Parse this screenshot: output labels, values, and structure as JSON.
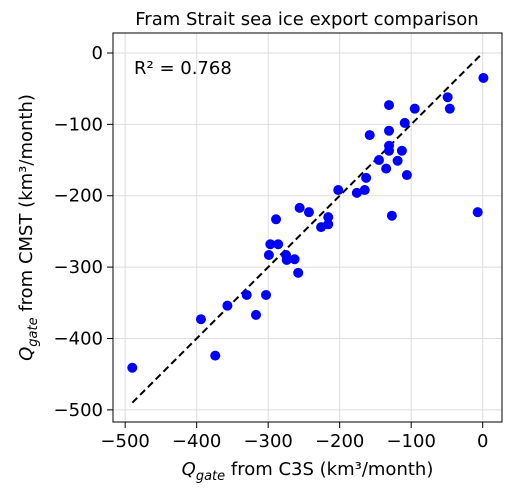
{
  "chart_data": {
    "type": "scatter",
    "title": "Fram Strait sea ice export comparison",
    "x_label": {
      "symbol": "Q",
      "subscript": "gate",
      "text": " from C3S (km³/month)"
    },
    "y_label": {
      "symbol": "Q",
      "subscript": "gate",
      "text": " from CMST (km³/month)"
    },
    "annotation": "R² = 0.768",
    "color": "#0000ff",
    "grid": true,
    "xlim": [
      -517,
      27
    ],
    "ylim": [
      -517,
      28
    ],
    "xticks": [
      {
        "value": -500,
        "label": "−500"
      },
      {
        "value": -400,
        "label": "−400"
      },
      {
        "value": -300,
        "label": "−300"
      },
      {
        "value": -200,
        "label": "−200"
      },
      {
        "value": -100,
        "label": "−100"
      },
      0
    ],
    "yticks": [
      {
        "value": -500,
        "label": "−500"
      },
      {
        "value": -400,
        "label": "−400"
      },
      {
        "value": -300,
        "label": "−300"
      },
      {
        "value": -200,
        "label": "−200"
      },
      {
        "value": -100,
        "label": "−100"
      },
      0
    ],
    "x": [
      -490,
      -394,
      -374,
      -357,
      -330,
      -317,
      -303,
      -297,
      -286,
      -299,
      -289,
      -275,
      -274,
      -263,
      -258,
      -256,
      -243,
      -226,
      -216,
      -216,
      -202,
      -176,
      -165,
      -163,
      -158,
      -145,
      -135,
      -131,
      -131,
      -131,
      -131,
      -127,
      -119,
      -113,
      -109,
      -106,
      -95,
      -49,
      -46,
      -7,
      1
    ],
    "values": [
      -441,
      -373,
      -424,
      -354,
      -339,
      -367,
      -339,
      -268,
      -268,
      -283,
      -233,
      -283,
      -290,
      -289,
      -308,
      -217,
      -223,
      -244,
      -230,
      -240,
      -192,
      -196,
      -192,
      -175,
      -115,
      -150,
      -162,
      -73,
      -109,
      -130,
      -137,
      -228,
      -151,
      -137,
      -98,
      -171,
      -78,
      -62,
      -78,
      -223,
      -35
    ],
    "reference_line": {
      "x": [
        -490,
        0
      ],
      "y": [
        -490,
        0
      ],
      "color": "#000000"
    }
  }
}
